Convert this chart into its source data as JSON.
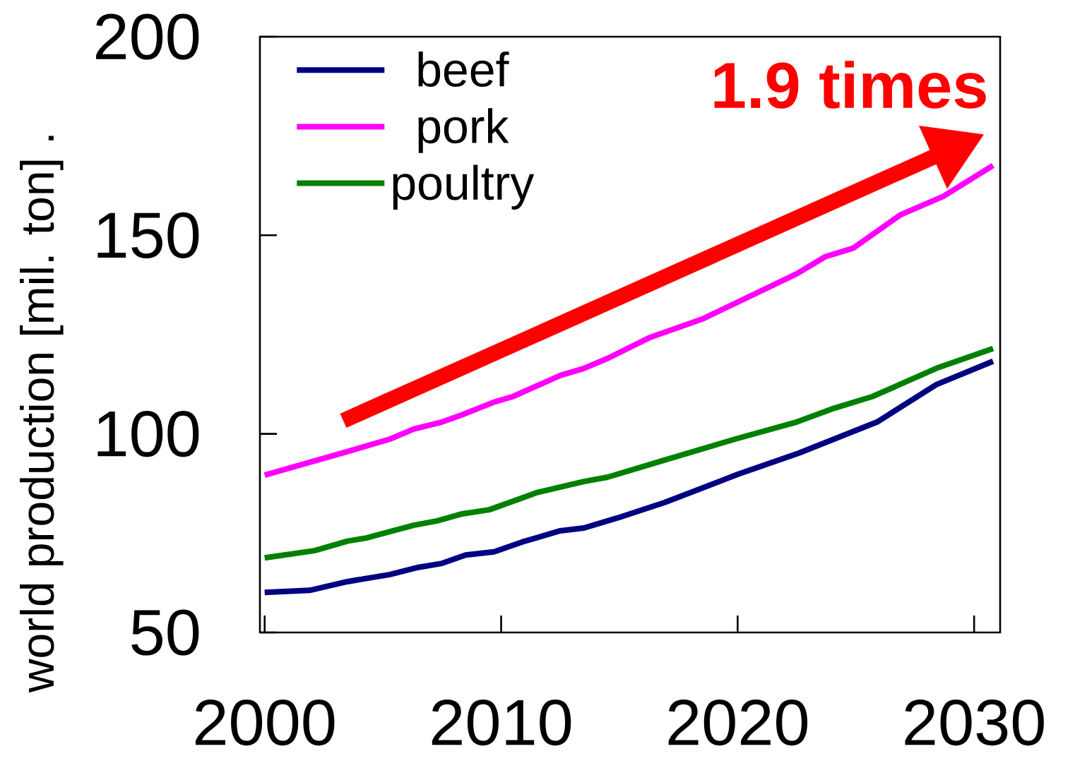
{
  "chart_data": {
    "type": "line",
    "ylabel": "world production [mil. ton] .",
    "annotations": [
      "1.9 times"
    ],
    "series": [
      {
        "name": "beef",
        "color": "#000080",
        "x": [
          2000,
          2001.9,
          2003.5,
          2005.3,
          2006.5,
          2007.5,
          2008.5,
          2009.7,
          2010.9,
          2012.5,
          2013.5,
          2014.9,
          2016.9,
          2020,
          2022.6,
          2025.9,
          2028.4,
          2030.8
        ],
        "values": [
          60.1,
          60.6,
          62.8,
          64.6,
          66.4,
          67.4,
          69.5,
          70.3,
          72.8,
          75.6,
          76.3,
          78.8,
          82.7,
          89.8,
          95.2,
          103,
          112.4,
          118.3
        ]
      },
      {
        "name": "pork",
        "color": "#ff00ff",
        "x": [
          2000,
          2003.3,
          2005.3,
          2006.3,
          2007.5,
          2008.3,
          2009.7,
          2010.5,
          2012.5,
          2013.5,
          2014.5,
          2016.3,
          2018.5,
          2022.5,
          2023.7,
          2024.9,
          2026.9,
          2028.7,
          2030.8
        ],
        "values": [
          89.6,
          95.2,
          98.7,
          101.2,
          103,
          104.7,
          108,
          109.4,
          114.7,
          116.5,
          119,
          124.3,
          128.9,
          140.3,
          144.6,
          146.8,
          155.2,
          159.8,
          167.6
        ]
      },
      {
        "name": "poultry",
        "color": "#008000",
        "x": [
          2000,
          2002.1,
          2003.5,
          2004.3,
          2006.3,
          2007.3,
          2008.3,
          2009.5,
          2011.5,
          2013.5,
          2014.5,
          2016.9,
          2019.9,
          2022.5,
          2024.1,
          2025.7,
          2028.4,
          2030.8
        ],
        "values": [
          68.8,
          70.6,
          73,
          73.8,
          77,
          78.1,
          79.8,
          80.9,
          85.2,
          88,
          89.1,
          93.4,
          98.7,
          103,
          106.5,
          109.4,
          116.5,
          121.5
        ]
      }
    ],
    "xlim": [
      1999.8,
      2031.1
    ],
    "ylim": [
      50,
      200
    ],
    "xticks": [
      2000,
      2010,
      2020,
      2030
    ],
    "yticks": [
      50,
      100,
      150,
      200
    ],
    "legend": "top left",
    "grid": false
  }
}
